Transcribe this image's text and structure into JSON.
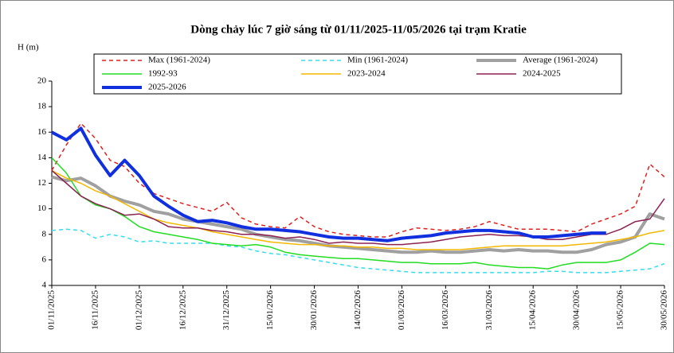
{
  "chart_data": {
    "type": "line",
    "title": "Dòng chảy lúc 7 giờ sáng từ 01/11/2025-11/05/2026 tại trạm Kratie",
    "y_label": "H (m)",
    "x": [
      "01/11/2025",
      "06/11/2025",
      "11/11/2025",
      "16/11/2025",
      "21/11/2025",
      "26/11/2025",
      "01/12/2025",
      "06/12/2025",
      "11/12/2025",
      "16/12/2025",
      "21/12/2025",
      "26/12/2025",
      "31/12/2025",
      "05/01/2026",
      "10/01/2026",
      "15/01/2026",
      "20/01/2026",
      "25/01/2026",
      "30/01/2026",
      "04/02/2026",
      "09/02/2026",
      "14/02/2026",
      "19/02/2026",
      "24/02/2026",
      "01/03/2026",
      "06/03/2026",
      "11/03/2026",
      "16/03/2026",
      "21/03/2026",
      "26/03/2026",
      "31/03/2026",
      "05/04/2026",
      "10/04/2026",
      "15/04/2026",
      "20/04/2026",
      "25/04/2026",
      "30/04/2026",
      "05/05/2026",
      "10/05/2026",
      "15/05/2026",
      "20/05/2026",
      "25/05/2026",
      "30/05/2026"
    ],
    "xlim": [
      "01/11/2025",
      "30/05/2026"
    ],
    "xticks": [
      "01/11/2025",
      "16/11/2025",
      "01/12/2025",
      "16/12/2025",
      "31/12/2025",
      "15/01/2026",
      "30/01/2026",
      "14/02/2026",
      "01/03/2026",
      "16/03/2026",
      "31/03/2026",
      "15/04/2026",
      "30/04/2026",
      "15/05/2026",
      "30/05/2026"
    ],
    "ylim": [
      4,
      20
    ],
    "yticks": [
      4,
      6,
      8,
      10,
      12,
      14,
      16,
      18,
      20
    ],
    "series": [
      {
        "name": "Max (1961-2024)",
        "color": "#e02020",
        "dash": true,
        "width": 1.5,
        "values": [
          13.0,
          15.0,
          16.7,
          15.5,
          13.8,
          13.3,
          12.0,
          11.2,
          10.8,
          10.4,
          10.1,
          9.8,
          10.5,
          9.3,
          8.8,
          8.6,
          8.5,
          9.4,
          8.6,
          8.2,
          8.0,
          7.9,
          7.8,
          7.8,
          8.2,
          8.5,
          8.4,
          8.3,
          8.4,
          8.6,
          9.0,
          8.7,
          8.4,
          8.4,
          8.4,
          8.3,
          8.2,
          8.8,
          9.2,
          9.6,
          10.2,
          13.5,
          12.5
        ]
      },
      {
        "name": "Min (1961-2024)",
        "color": "#33ddee",
        "dash": true,
        "width": 1.5,
        "values": [
          8.3,
          8.4,
          8.3,
          7.7,
          8.0,
          7.8,
          7.4,
          7.5,
          7.3,
          7.3,
          7.3,
          7.3,
          7.1,
          7.0,
          6.7,
          6.5,
          6.4,
          6.2,
          6.0,
          5.8,
          5.6,
          5.4,
          5.3,
          5.2,
          5.1,
          5.0,
          5.0,
          5.0,
          5.0,
          5.0,
          5.0,
          5.0,
          5.0,
          5.0,
          5.1,
          5.1,
          5.0,
          5.0,
          5.0,
          5.1,
          5.2,
          5.3,
          5.7
        ]
      },
      {
        "name": "Average (1961-2024)",
        "color": "#a0a0a0",
        "dash": false,
        "width": 4,
        "values": [
          12.5,
          12.2,
          12.4,
          11.8,
          11.0,
          10.6,
          10.3,
          9.8,
          9.6,
          9.2,
          9.0,
          8.8,
          8.6,
          8.4,
          8.0,
          7.8,
          7.6,
          7.5,
          7.3,
          7.1,
          7.0,
          6.9,
          6.8,
          6.7,
          6.6,
          6.6,
          6.7,
          6.6,
          6.6,
          6.7,
          6.8,
          6.7,
          6.8,
          6.7,
          6.7,
          6.6,
          6.6,
          6.8,
          7.2,
          7.4,
          7.8,
          9.6,
          9.2
        ]
      },
      {
        "name": "1992-93",
        "color": "#22dd22",
        "dash": false,
        "width": 1.5,
        "values": [
          14.0,
          12.8,
          11.0,
          10.3,
          10.0,
          9.4,
          8.6,
          8.2,
          8.0,
          7.8,
          7.6,
          7.3,
          7.2,
          7.1,
          7.2,
          7.0,
          6.6,
          6.4,
          6.3,
          6.2,
          6.1,
          6.1,
          6.0,
          5.9,
          5.8,
          5.8,
          5.7,
          5.7,
          5.7,
          5.8,
          5.6,
          5.5,
          5.4,
          5.4,
          5.3,
          5.6,
          5.8,
          5.8,
          5.8,
          6.0,
          6.6,
          7.3,
          7.2
        ]
      },
      {
        "name": "2023-2024",
        "color": "#f5b800",
        "dash": false,
        "width": 1.5,
        "values": [
          13.0,
          12.4,
          12.0,
          11.4,
          11.0,
          10.4,
          9.8,
          9.2,
          8.9,
          8.7,
          8.5,
          8.2,
          8.0,
          7.8,
          7.6,
          7.4,
          7.3,
          7.2,
          7.2,
          7.1,
          7.1,
          7.0,
          7.0,
          6.9,
          6.9,
          6.8,
          6.8,
          6.8,
          6.8,
          6.9,
          7.0,
          7.1,
          7.1,
          7.1,
          7.1,
          7.1,
          7.2,
          7.3,
          7.4,
          7.6,
          7.8,
          8.1,
          8.3
        ]
      },
      {
        "name": "2024-2025",
        "color": "#8b2252",
        "dash": false,
        "width": 1.5,
        "values": [
          13.0,
          12.0,
          11.0,
          10.4,
          10.0,
          9.5,
          9.6,
          9.2,
          8.6,
          8.5,
          8.5,
          8.3,
          8.2,
          8.0,
          8.0,
          7.9,
          7.7,
          7.8,
          7.6,
          7.3,
          7.4,
          7.3,
          7.3,
          7.2,
          7.2,
          7.3,
          7.4,
          7.6,
          7.8,
          7.9,
          8.0,
          7.9,
          7.9,
          7.8,
          7.6,
          7.6,
          7.8,
          8.0,
          8.0,
          8.4,
          9.0,
          9.2,
          10.8
        ]
      },
      {
        "name": "2025-2026",
        "color": "#1030e0",
        "dash": false,
        "width": 4,
        "values": [
          16.0,
          15.4,
          16.3,
          14.2,
          12.6,
          13.8,
          12.6,
          11.0,
          10.2,
          9.5,
          9.0,
          9.1,
          8.9,
          8.6,
          8.4,
          8.4,
          8.3,
          8.2,
          8.0,
          7.8,
          7.7,
          7.7,
          7.6,
          7.5,
          7.7,
          7.8,
          7.9,
          8.1,
          8.2,
          8.3,
          8.3,
          8.2,
          8.1,
          7.8,
          7.8,
          7.9,
          8.0,
          8.1,
          8.1,
          null,
          null,
          null,
          null
        ]
      }
    ]
  }
}
